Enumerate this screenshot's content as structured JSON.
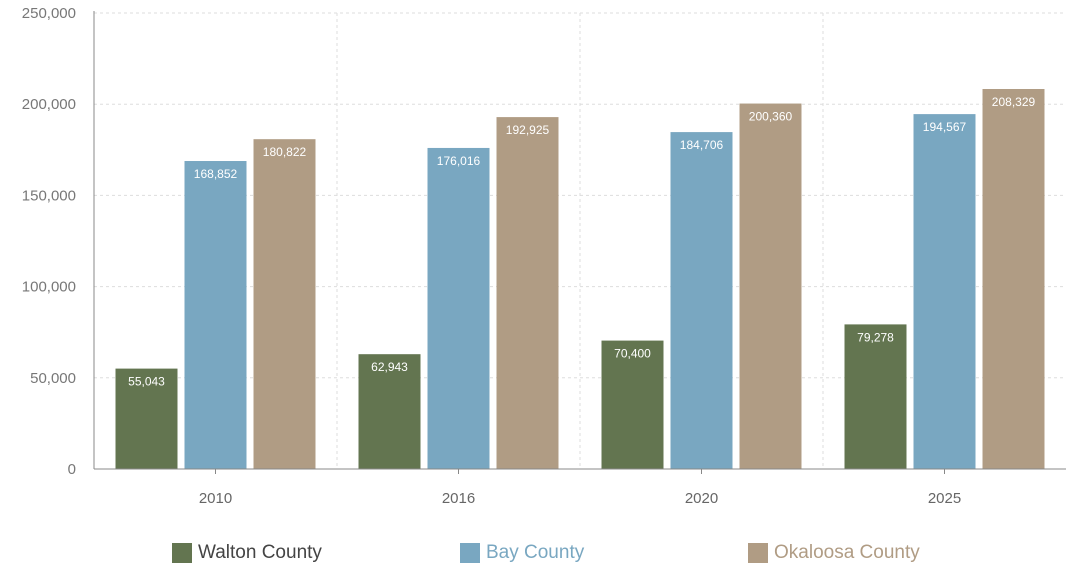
{
  "chart_data": {
    "type": "bar",
    "categories": [
      "2010",
      "2016",
      "2020",
      "2025"
    ],
    "series": [
      {
        "name": "Walton County",
        "color": "#637550",
        "values": [
          55043,
          62943,
          70400,
          79278
        ]
      },
      {
        "name": "Bay County",
        "color": "#79a7c1",
        "values": [
          168852,
          176016,
          184706,
          194567
        ]
      },
      {
        "name": "Okaloosa County",
        "color": "#b09c84",
        "values": [
          180822,
          192925,
          200360,
          208329
        ]
      }
    ],
    "data_labels": [
      [
        "55,043",
        "62,943",
        "70,400",
        "79,278"
      ],
      [
        "168,852",
        "176,016",
        "184,706",
        "194,567"
      ],
      [
        "180,822",
        "192,925",
        "200,360",
        "208,329"
      ]
    ],
    "ylim": [
      0,
      250000
    ],
    "yticks": [
      0,
      50000,
      100000,
      150000,
      200000,
      250000
    ],
    "ytick_labels": [
      "0",
      "50,000",
      "100,000",
      "150,000",
      "200,000",
      "250,000"
    ],
    "grid": true,
    "legend_position": "bottom",
    "title": "",
    "xlabel": "",
    "ylabel": "",
    "axis_color": "#888888",
    "grid_color": "#dddddd"
  }
}
